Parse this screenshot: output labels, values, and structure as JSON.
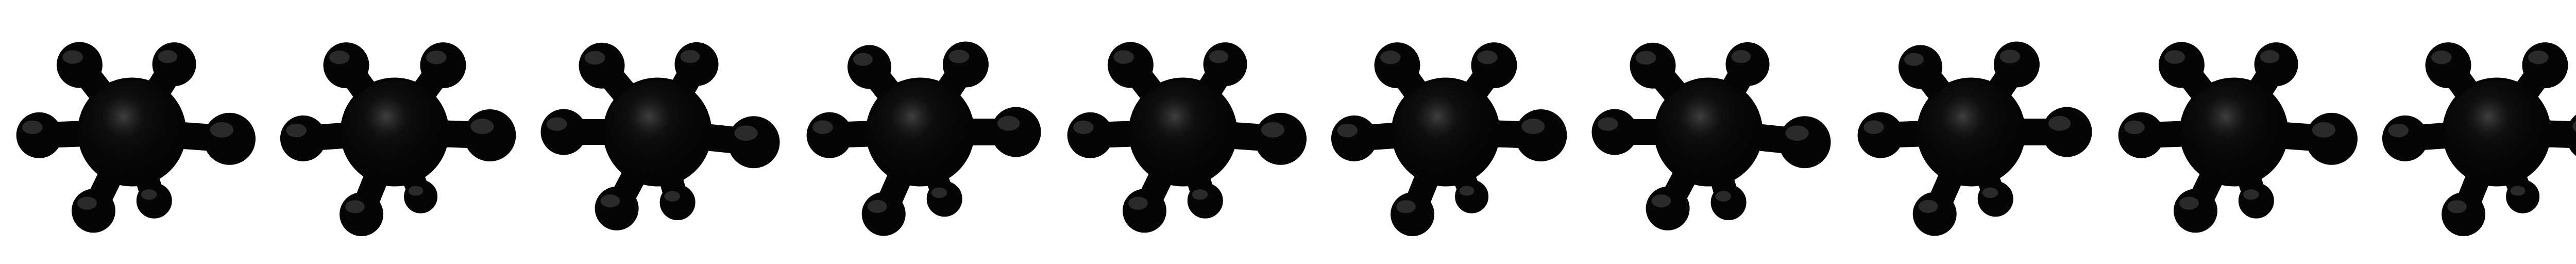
{
  "image": {
    "background_color": "#ffffff",
    "sprite_color": "#050505",
    "highlight_color": "#6f6f6f",
    "sprite_count": 10
  },
  "sprites": [
    {
      "frame": 1,
      "icon": "ink-splat-icon"
    },
    {
      "frame": 2,
      "icon": "ink-splat-icon"
    },
    {
      "frame": 3,
      "icon": "ink-splat-icon"
    },
    {
      "frame": 4,
      "icon": "ink-splat-icon"
    },
    {
      "frame": 5,
      "icon": "ink-splat-icon"
    },
    {
      "frame": 6,
      "icon": "ink-splat-icon"
    },
    {
      "frame": 7,
      "icon": "ink-splat-icon"
    },
    {
      "frame": 8,
      "icon": "ink-splat-icon"
    },
    {
      "frame": 9,
      "icon": "ink-splat-icon"
    },
    {
      "frame": 10,
      "icon": "ink-splat-icon"
    }
  ]
}
